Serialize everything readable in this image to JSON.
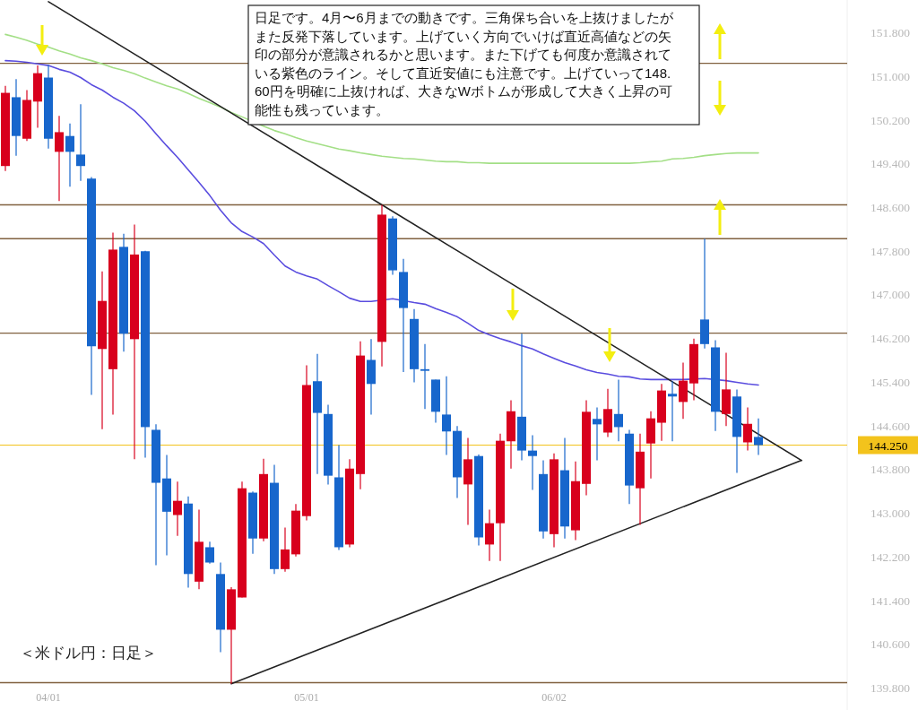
{
  "chart_data": {
    "type": "candlestick",
    "title": "＜米ドル円：日足＞",
    "annotations": [
      "日足です。4月〜6月までの動きです。三角保ち合いを上抜けましたがまた反発下落しています。上げていく方向でいけば直近高値などの矢印の部分が意識されるかと思います。また下げても何度か意識されている紫色のライン。そして直近安値にも注意です。上げていって148.60円を明確に上抜ければ、大きなWボトムが形成して大きく上昇の可能性も残っています。"
    ],
    "categories": [
      null,
      null,
      null,
      null,
      "04/01",
      null,
      null,
      null,
      null,
      null,
      null,
      null,
      null,
      null,
      null,
      null,
      null,
      null,
      null,
      null,
      null,
      null,
      null,
      null,
      null,
      null,
      null,
      null,
      "05/01",
      null,
      null,
      null,
      null,
      null,
      null,
      null,
      null,
      null,
      null,
      null,
      null,
      null,
      null,
      null,
      null,
      null,
      null,
      null,
      null,
      null,
      null,
      "06/02",
      null,
      null,
      null,
      null,
      null,
      null,
      null,
      null,
      null,
      null,
      null,
      null,
      null,
      null,
      null,
      null,
      null,
      null,
      null,
      null,
      null,
      null,
      null
    ],
    "ohlc": [
      [
        149.36,
        150.83,
        149.27,
        150.7
      ],
      [
        150.62,
        150.95,
        149.55,
        149.91
      ],
      [
        149.86,
        150.75,
        149.82,
        150.57
      ],
      [
        150.54,
        151.2,
        150.06,
        151.06
      ],
      [
        150.98,
        151.21,
        149.68,
        149.86
      ],
      [
        149.62,
        150.28,
        148.72,
        149.98
      ],
      [
        149.91,
        150.14,
        148.98,
        149.62
      ],
      [
        149.57,
        150.49,
        149.09,
        149.36
      ],
      [
        149.13,
        149.16,
        145.17,
        146.06
      ],
      [
        146.01,
        147.43,
        144.54,
        146.89
      ],
      [
        145.64,
        148.14,
        144.81,
        147.83
      ],
      [
        147.88,
        148.12,
        145.96,
        146.29
      ],
      [
        146.19,
        148.29,
        143.99,
        147.74
      ],
      [
        147.8,
        147.81,
        144.02,
        144.58
      ],
      [
        144.53,
        144.63,
        142.05,
        143.56
      ],
      [
        143.64,
        144.07,
        142.23,
        143.03
      ],
      [
        142.97,
        143.58,
        142.59,
        143.23
      ],
      [
        143.18,
        143.31,
        141.64,
        141.89
      ],
      [
        141.75,
        143.07,
        141.61,
        142.48
      ],
      [
        142.38,
        142.48,
        142.08,
        142.1
      ],
      [
        141.89,
        142.1,
        140.46,
        140.87
      ],
      [
        140.87,
        141.65,
        139.88,
        141.61
      ],
      [
        141.46,
        143.58,
        141.46,
        143.46
      ],
      [
        143.38,
        143.4,
        142.26,
        142.54
      ],
      [
        142.54,
        144.0,
        142.49,
        143.72
      ],
      [
        143.56,
        143.89,
        141.89,
        141.98
      ],
      [
        141.98,
        142.74,
        141.93,
        142.34
      ],
      [
        142.25,
        143.17,
        142.21,
        143.05
      ],
      [
        142.95,
        145.71,
        142.87,
        145.35
      ],
      [
        145.42,
        145.92,
        143.72,
        144.84
      ],
      [
        144.82,
        144.99,
        143.53,
        143.69
      ],
      [
        143.66,
        144.25,
        142.33,
        142.38
      ],
      [
        142.43,
        143.99,
        142.38,
        143.82
      ],
      [
        143.72,
        146.15,
        143.44,
        145.89
      ],
      [
        145.81,
        146.19,
        144.81,
        145.37
      ],
      [
        146.14,
        148.65,
        145.69,
        148.47
      ],
      [
        148.4,
        148.44,
        147.37,
        147.45
      ],
      [
        147.42,
        147.66,
        145.59,
        146.76
      ],
      [
        146.56,
        146.74,
        145.4,
        145.64
      ],
      [
        145.64,
        146.1,
        144.91,
        145.61
      ],
      [
        145.45,
        145.45,
        144.66,
        144.86
      ],
      [
        144.81,
        145.51,
        144.07,
        144.5
      ],
      [
        144.51,
        144.6,
        143.28,
        143.66
      ],
      [
        143.53,
        144.38,
        142.79,
        143.99
      ],
      [
        144.05,
        144.08,
        142.41,
        142.56
      ],
      [
        142.43,
        143.07,
        142.13,
        142.82
      ],
      [
        142.82,
        144.46,
        142.13,
        144.33
      ],
      [
        144.32,
        145.07,
        143.82,
        144.87
      ],
      [
        144.77,
        146.29,
        143.97,
        144.15
      ],
      [
        144.15,
        144.43,
        143.43,
        144.05
      ],
      [
        143.72,
        143.97,
        142.54,
        142.67
      ],
      [
        142.62,
        144.1,
        142.38,
        143.99
      ],
      [
        143.79,
        144.38,
        142.54,
        142.76
      ],
      [
        142.69,
        143.95,
        142.51,
        143.59
      ],
      [
        143.54,
        145.07,
        143.33,
        144.86
      ],
      [
        144.73,
        144.94,
        143.97,
        144.63
      ],
      [
        144.48,
        145.28,
        144.4,
        144.91
      ],
      [
        144.82,
        145.45,
        144.32,
        144.58
      ],
      [
        144.46,
        144.53,
        143.17,
        143.51
      ],
      [
        143.46,
        144.46,
        142.79,
        144.13
      ],
      [
        144.28,
        144.87,
        143.64,
        144.74
      ],
      [
        144.66,
        145.37,
        144.33,
        145.25
      ],
      [
        145.19,
        145.42,
        144.32,
        145.14
      ],
      [
        145.04,
        145.76,
        144.73,
        145.43
      ],
      [
        145.38,
        146.2,
        145.07,
        146.1
      ],
      [
        146.55,
        148.03,
        146.02,
        146.1
      ],
      [
        146.04,
        146.17,
        144.51,
        144.86
      ],
      [
        144.82,
        145.94,
        144.6,
        145.27
      ],
      [
        145.14,
        145.27,
        143.74,
        144.4
      ],
      [
        144.3,
        144.94,
        144.15,
        144.64
      ],
      [
        144.4,
        144.74,
        144.07,
        144.25
      ],
      null,
      null,
      null,
      null
    ],
    "colors": [
      "#d8001d",
      "#1766cc",
      "#d8001d",
      "#d8001d",
      "#1766cc",
      "#d8001d",
      "#1766cc",
      "#1766cc",
      "#1766cc",
      "#d8001d",
      "#d8001d",
      "#1766cc",
      "#d8001d",
      "#1766cc",
      "#1766cc",
      "#1766cc",
      "#d8001d",
      "#1766cc",
      "#d8001d",
      "#1766cc",
      "#1766cc",
      "#d8001d",
      "#d8001d",
      "#1766cc",
      "#d8001d",
      "#1766cc",
      "#d8001d",
      "#d8001d",
      "#d8001d",
      "#1766cc",
      "#1766cc",
      "#1766cc",
      "#d8001d",
      "#d8001d",
      "#1766cc",
      "#d8001d",
      "#1766cc",
      "#1766cc",
      "#1766cc",
      "#1766cc",
      "#1766cc",
      "#1766cc",
      "#1766cc",
      "#d8001d",
      "#1766cc",
      "#d8001d",
      "#d8001d",
      "#d8001d",
      "#1766cc",
      "#1766cc",
      "#1766cc",
      "#d8001d",
      "#1766cc",
      "#d8001d",
      "#d8001d",
      "#1766cc",
      "#d8001d",
      "#1766cc",
      "#1766cc",
      "#d8001d",
      "#d8001d",
      "#d8001d",
      "#1766cc",
      "#d8001d",
      "#d8001d",
      "#1766cc",
      "#1766cc",
      "#d8001d",
      "#1766cc",
      "#d8001d",
      "#1766cc",
      null,
      null,
      null,
      null
    ],
    "series": [
      {
        "type": "line",
        "color": "#a3df86",
        "values": [
          151.77,
          151.72,
          151.66,
          151.59,
          151.54,
          151.47,
          151.41,
          151.34,
          151.29,
          151.23,
          151.16,
          151.11,
          151.05,
          150.97,
          150.9,
          150.83,
          150.77,
          150.69,
          150.6,
          150.52,
          150.44,
          150.34,
          150.26,
          null,
          150.09,
          150.01,
          149.95,
          149.88,
          149.82,
          149.77,
          149.72,
          149.67,
          149.64,
          149.6,
          149.57,
          149.54,
          149.52,
          149.5,
          149.49,
          149.47,
          149.45,
          149.44,
          149.44,
          149.42,
          149.42,
          149.41,
          149.41,
          149.41,
          149.41,
          149.41,
          149.41,
          149.41,
          149.41,
          149.41,
          149.41,
          149.41,
          149.41,
          149.41,
          149.41,
          149.42,
          149.44,
          149.45,
          149.49,
          149.5,
          149.52,
          149.55,
          149.57,
          149.59,
          149.6,
          149.6,
          149.6,
          null,
          null,
          null,
          null
        ]
      },
      {
        "type": "line",
        "color": "#5a4ddf",
        "values": [
          151.29,
          151.28,
          151.26,
          151.23,
          151.2,
          151.13,
          151.08,
          150.98,
          150.85,
          150.75,
          150.62,
          150.51,
          150.37,
          150.18,
          149.95,
          149.73,
          149.52,
          149.29,
          149.06,
          148.82,
          148.55,
          148.32,
          148.16,
          148.06,
          147.94,
          147.73,
          147.53,
          147.42,
          147.35,
          147.29,
          147.17,
          147.06,
          146.94,
          146.88,
          146.88,
          null,
          146.93,
          null,
          146.86,
          146.83,
          146.75,
          146.68,
          146.6,
          146.48,
          146.35,
          146.27,
          146.2,
          146.14,
          146.07,
          146.01,
          145.92,
          145.84,
          145.76,
          145.7,
          145.63,
          145.58,
          145.55,
          145.51,
          145.5,
          145.46,
          145.45,
          145.45,
          145.45,
          145.45,
          null,
          145.47,
          null,
          145.43,
          145.4,
          145.37,
          145.35,
          null,
          null,
          null,
          null
        ]
      },
      {
        "type": "line",
        "color": "#222222",
        "values": [
          null,
          null,
          null,
          null,
          152.37,
          null,
          null,
          null,
          null,
          null,
          null,
          null,
          null,
          null,
          null,
          null,
          null,
          null,
          null,
          null,
          null,
          null,
          null,
          null,
          null,
          null,
          null,
          null,
          null,
          null,
          null,
          null,
          null,
          null,
          null,
          148.65,
          null,
          null,
          null,
          null,
          null,
          null,
          null,
          null,
          null,
          null,
          null,
          null,
          null,
          null,
          null,
          null,
          null,
          null,
          null,
          null,
          null,
          null,
          null,
          null,
          null,
          null,
          null,
          null,
          null,
          null,
          null,
          null,
          null,
          null,
          null,
          null,
          null,
          null,
          143.97
        ]
      },
      {
        "type": "line",
        "color": "#222222",
        "values": [
          null,
          null,
          null,
          null,
          null,
          null,
          null,
          null,
          null,
          null,
          null,
          null,
          null,
          null,
          null,
          null,
          null,
          null,
          null,
          null,
          null,
          139.88,
          null,
          null,
          null,
          null,
          null,
          null,
          null,
          null,
          null,
          null,
          null,
          null,
          null,
          null,
          null,
          null,
          null,
          null,
          null,
          null,
          null,
          null,
          null,
          null,
          null,
          null,
          null,
          null,
          null,
          null,
          null,
          null,
          null,
          null,
          null,
          null,
          null,
          null,
          null,
          null,
          null,
          null,
          null,
          null,
          null,
          null,
          null,
          null,
          null,
          null,
          null,
          null,
          143.97
        ]
      }
    ],
    "ylim": [
      139.4,
      152.4
    ],
    "yticks": [
      {
        "value": 139.8,
        "label": "139.800"
      },
      {
        "value": 140.6,
        "label": "140.600"
      },
      {
        "value": 141.4,
        "label": "141.400"
      },
      {
        "value": 142.2,
        "label": "142.200"
      },
      {
        "value": 143.0,
        "label": "143.000"
      },
      {
        "value": 143.8,
        "label": "143.800"
      },
      {
        "value": 144.6,
        "label": "144.600"
      },
      {
        "value": 145.4,
        "label": "145.400"
      },
      {
        "value": 146.2,
        "label": "146.200"
      },
      {
        "value": 147.0,
        "label": "147.000"
      },
      {
        "value": 147.8,
        "label": "147.800"
      },
      {
        "value": 148.6,
        "label": "148.600"
      },
      {
        "value": 149.4,
        "label": "149.400"
      },
      {
        "value": 150.2,
        "label": "150.200"
      },
      {
        "value": 151.0,
        "label": "151.000"
      },
      {
        "value": 151.8,
        "label": "151.800"
      }
    ],
    "ref_lines": [
      {
        "axis": "y",
        "value": 151.24,
        "color": "#80603f"
      },
      {
        "axis": "y",
        "value": 148.65,
        "color": "#80603f"
      },
      {
        "axis": "y",
        "value": 148.03,
        "color": "#80603f"
      },
      {
        "axis": "y",
        "value": 146.3,
        "color": "#80603f"
      },
      {
        "axis": "y",
        "value": 139.9,
        "color": "#80603f"
      },
      {
        "axis": "y",
        "value": 144.25,
        "label": "144.250",
        "color": "#f3c31c"
      }
    ]
  }
}
